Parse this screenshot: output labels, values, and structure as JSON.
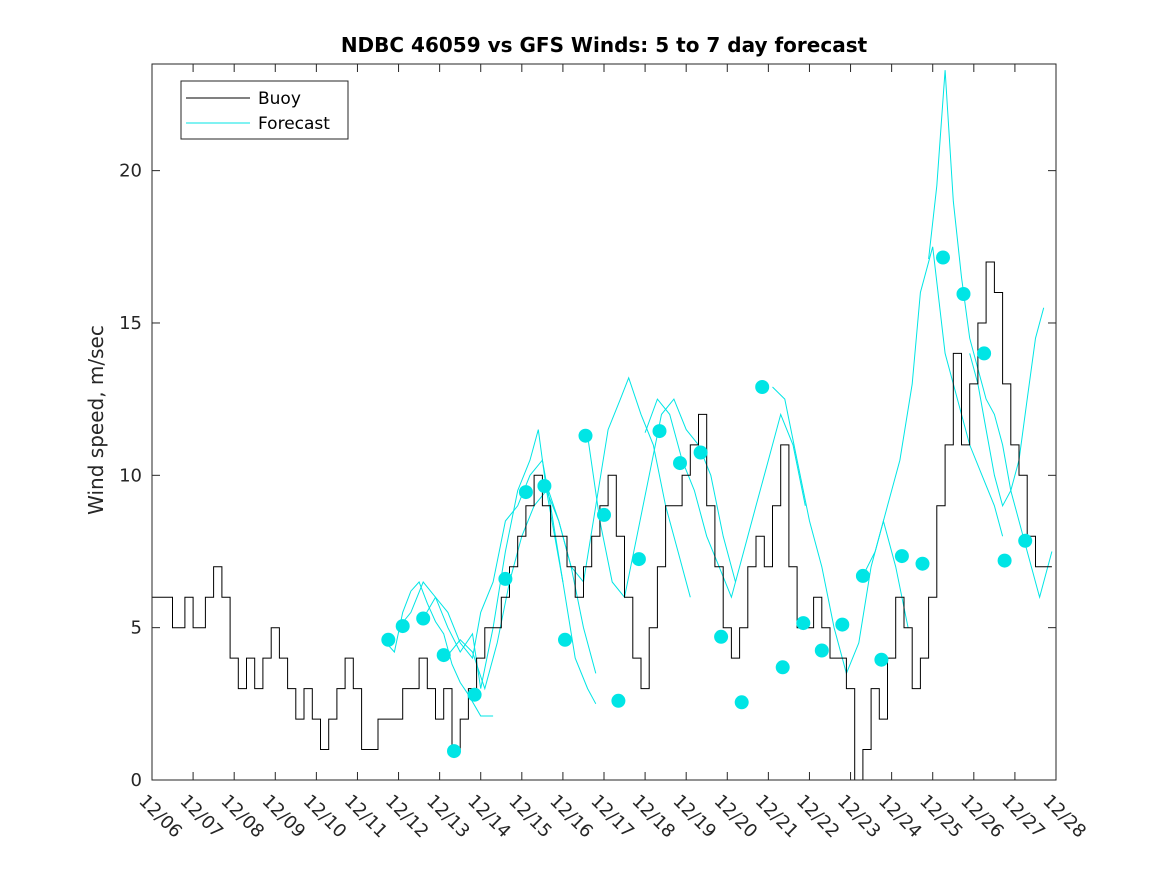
{
  "chart_data": {
    "type": "line",
    "title": "NDBC 46059 vs GFS Winds: 5 to 7 day forecast",
    "xlabel": "",
    "ylabel": "Wind speed, m/sec",
    "xlim": [
      0,
      22
    ],
    "ylim": [
      0,
      23.5
    ],
    "x_unit": "days from 12/06",
    "x_tick_values": [
      0,
      1,
      2,
      3,
      4,
      5,
      6,
      7,
      8,
      9,
      10,
      11,
      12,
      13,
      14,
      15,
      16,
      17,
      18,
      19,
      20,
      21,
      22
    ],
    "x_tick_labels": [
      "12/06",
      "12/07",
      "12/08",
      "12/09",
      "12/10",
      "12/11",
      "12/12",
      "12/13",
      "12/14",
      "12/15",
      "12/16",
      "12/17",
      "12/18",
      "12/19",
      "12/20",
      "12/21",
      "12/22",
      "12/23",
      "12/24",
      "12/25",
      "12/26",
      "12/27",
      "12/28"
    ],
    "y_ticks": [
      0,
      5,
      10,
      15,
      20
    ],
    "y_tick_labels": [
      "0",
      "5",
      "10",
      "15",
      "20"
    ],
    "grid": false,
    "legend": {
      "position": "top-left",
      "entries": [
        "Buoy",
        "Forecast"
      ]
    },
    "colors": {
      "buoy": "#000000",
      "forecast": "#00e5e5",
      "markers": "#00e5e5"
    },
    "buoy": [
      [
        0,
        6
      ],
      [
        0.3,
        6
      ],
      [
        0.5,
        5
      ],
      [
        0.8,
        6
      ],
      [
        1,
        5
      ],
      [
        1.3,
        6
      ],
      [
        1.5,
        7
      ],
      [
        1.7,
        6
      ],
      [
        1.9,
        4
      ],
      [
        2.1,
        3
      ],
      [
        2.3,
        4
      ],
      [
        2.5,
        3
      ],
      [
        2.7,
        4
      ],
      [
        2.9,
        5
      ],
      [
        3.1,
        4
      ],
      [
        3.3,
        3
      ],
      [
        3.5,
        2
      ],
      [
        3.7,
        3
      ],
      [
        3.9,
        2
      ],
      [
        4.1,
        1
      ],
      [
        4.3,
        2
      ],
      [
        4.5,
        3
      ],
      [
        4.7,
        4
      ],
      [
        4.9,
        3
      ],
      [
        5.1,
        1
      ],
      [
        5.3,
        1
      ],
      [
        5.5,
        2
      ],
      [
        5.7,
        2
      ],
      [
        5.9,
        2
      ],
      [
        6.1,
        3
      ],
      [
        6.3,
        3
      ],
      [
        6.5,
        4
      ],
      [
        6.7,
        3
      ],
      [
        6.9,
        2
      ],
      [
        7.1,
        3
      ],
      [
        7.3,
        1
      ],
      [
        7.5,
        2
      ],
      [
        7.7,
        3
      ],
      [
        7.9,
        4
      ],
      [
        8.1,
        5
      ],
      [
        8.3,
        5
      ],
      [
        8.5,
        6
      ],
      [
        8.7,
        7
      ],
      [
        8.9,
        8
      ],
      [
        9.1,
        9
      ],
      [
        9.3,
        10
      ],
      [
        9.5,
        9
      ],
      [
        9.7,
        8
      ],
      [
        9.9,
        8
      ],
      [
        10.1,
        7
      ],
      [
        10.3,
        6
      ],
      [
        10.5,
        7
      ],
      [
        10.7,
        8
      ],
      [
        10.9,
        9
      ],
      [
        11.1,
        10
      ],
      [
        11.3,
        8
      ],
      [
        11.5,
        6
      ],
      [
        11.7,
        4
      ],
      [
        11.9,
        3
      ],
      [
        12.1,
        5
      ],
      [
        12.3,
        7
      ],
      [
        12.5,
        9
      ],
      [
        12.7,
        9
      ],
      [
        12.9,
        10
      ],
      [
        13.1,
        11
      ],
      [
        13.3,
        12
      ],
      [
        13.5,
        9
      ],
      [
        13.7,
        7
      ],
      [
        13.9,
        5
      ],
      [
        14.1,
        4
      ],
      [
        14.3,
        5
      ],
      [
        14.5,
        7
      ],
      [
        14.7,
        8
      ],
      [
        14.9,
        7
      ],
      [
        15.1,
        9
      ],
      [
        15.3,
        11
      ],
      [
        15.5,
        7
      ],
      [
        15.7,
        5
      ],
      [
        15.9,
        5
      ],
      [
        16.1,
        6
      ],
      [
        16.3,
        5
      ],
      [
        16.5,
        4
      ],
      [
        16.7,
        4
      ],
      [
        16.9,
        3
      ],
      [
        17.1,
        0
      ],
      [
        17.3,
        1
      ],
      [
        17.5,
        3
      ],
      [
        17.7,
        2
      ],
      [
        17.9,
        4
      ],
      [
        18.1,
        6
      ],
      [
        18.3,
        5
      ],
      [
        18.5,
        3
      ],
      [
        18.7,
        4
      ],
      [
        18.9,
        6
      ],
      [
        19.1,
        9
      ],
      [
        19.3,
        11
      ],
      [
        19.5,
        14
      ],
      [
        19.7,
        11
      ],
      [
        19.9,
        13
      ],
      [
        20.1,
        15
      ],
      [
        20.3,
        17
      ],
      [
        20.5,
        16
      ],
      [
        20.7,
        13
      ],
      [
        20.9,
        11
      ],
      [
        21.1,
        10
      ],
      [
        21.3,
        8
      ],
      [
        21.5,
        7
      ],
      [
        21.7,
        7
      ],
      [
        21.9,
        7
      ]
    ],
    "forecast_runs": [
      [
        [
          5.7,
          4.5
        ],
        [
          5.9,
          4.2
        ],
        [
          6.1,
          5.5
        ],
        [
          6.3,
          6.2
        ],
        [
          6.5,
          6.5
        ],
        [
          6.7,
          5.8
        ],
        [
          6.9,
          5.2
        ],
        [
          7.1,
          4.8
        ],
        [
          7.3,
          3.8
        ],
        [
          7.5,
          3.2
        ],
        [
          7.7,
          2.8
        ],
        [
          8.0,
          2.1
        ],
        [
          8.3,
          2.1
        ]
      ],
      [
        [
          6.0,
          5.0
        ],
        [
          6.3,
          5.5
        ],
        [
          6.6,
          6.5
        ],
        [
          6.9,
          6.0
        ],
        [
          7.2,
          5.0
        ],
        [
          7.5,
          4.2
        ],
        [
          7.8,
          4.8
        ],
        [
          8.0,
          3.0
        ],
        [
          8.3,
          5.0
        ],
        [
          8.6,
          7.5
        ],
        [
          8.9,
          9.5
        ],
        [
          9.2,
          10.5
        ],
        [
          9.4,
          11.5
        ],
        [
          9.6,
          9.5
        ],
        [
          9.8,
          8.0
        ],
        [
          10.0,
          6.5
        ]
      ],
      [
        [
          6.6,
          5.3
        ],
        [
          6.9,
          6.0
        ],
        [
          7.2,
          5.5
        ],
        [
          7.5,
          4.5
        ],
        [
          7.8,
          4.0
        ],
        [
          8.0,
          5.5
        ],
        [
          8.3,
          6.5
        ],
        [
          8.6,
          8.5
        ],
        [
          8.9,
          9.0
        ],
        [
          9.2,
          10.0
        ],
        [
          9.5,
          10.5
        ],
        [
          9.7,
          9.0
        ],
        [
          10.0,
          6.5
        ],
        [
          10.3,
          4.0
        ],
        [
          10.6,
          3.0
        ],
        [
          10.8,
          2.5
        ]
      ],
      [
        [
          7.2,
          4.1
        ],
        [
          7.5,
          4.6
        ],
        [
          7.8,
          4.2
        ],
        [
          8.1,
          3.0
        ],
        [
          8.4,
          4.5
        ],
        [
          8.7,
          6.5
        ],
        [
          9.0,
          8.0
        ],
        [
          9.3,
          9.0
        ],
        [
          9.6,
          9.5
        ],
        [
          9.9,
          8.5
        ],
        [
          10.2,
          7.0
        ],
        [
          10.5,
          5.0
        ],
        [
          10.8,
          3.5
        ]
      ],
      [
        [
          9.6,
          9.7
        ],
        [
          9.9,
          8.5
        ],
        [
          10.2,
          7.0
        ],
        [
          10.5,
          6.5
        ],
        [
          10.8,
          9.0
        ],
        [
          11.1,
          11.5
        ],
        [
          11.4,
          12.5
        ],
        [
          11.6,
          13.2
        ],
        [
          11.9,
          12.0
        ],
        [
          12.2,
          11.0
        ],
        [
          12.5,
          9.0
        ],
        [
          12.8,
          7.5
        ],
        [
          13.1,
          6.0
        ]
      ],
      [
        [
          10.6,
          11.3
        ],
        [
          10.9,
          8.5
        ],
        [
          11.2,
          6.5
        ],
        [
          11.5,
          6.0
        ],
        [
          11.8,
          8.0
        ],
        [
          12.1,
          10.0
        ],
        [
          12.4,
          12.0
        ],
        [
          12.7,
          12.5
        ],
        [
          13.0,
          11.5
        ],
        [
          13.3,
          11.0
        ],
        [
          13.6,
          10.0
        ],
        [
          13.9,
          8.0
        ],
        [
          14.2,
          6.5
        ]
      ],
      [
        [
          12.0,
          11.4
        ],
        [
          12.3,
          12.5
        ],
        [
          12.6,
          12.0
        ],
        [
          12.9,
          10.5
        ],
        [
          13.2,
          9.5
        ],
        [
          13.5,
          8.0
        ],
        [
          13.8,
          7.0
        ],
        [
          14.1,
          6.0
        ],
        [
          14.4,
          7.5
        ],
        [
          14.7,
          9.0
        ],
        [
          15.0,
          10.5
        ],
        [
          15.3,
          12.0
        ],
        [
          15.6,
          11.0
        ],
        [
          15.9,
          9.0
        ]
      ],
      [
        [
          15.1,
          12.9
        ],
        [
          15.4,
          12.5
        ],
        [
          15.7,
          10.5
        ],
        [
          16.0,
          8.5
        ],
        [
          16.3,
          7.0
        ],
        [
          16.6,
          5.0
        ],
        [
          16.9,
          3.5
        ],
        [
          17.2,
          4.5
        ],
        [
          17.5,
          7.0
        ],
        [
          17.8,
          8.5
        ],
        [
          18.1,
          7.0
        ],
        [
          18.4,
          5.0
        ]
      ],
      [
        [
          17.3,
          6.7
        ],
        [
          17.6,
          7.5
        ],
        [
          17.9,
          9.0
        ],
        [
          18.2,
          10.5
        ],
        [
          18.5,
          13.0
        ],
        [
          18.7,
          16.0
        ],
        [
          19.0,
          17.5
        ],
        [
          19.3,
          14.0
        ],
        [
          19.6,
          12.5
        ],
        [
          19.9,
          11.0
        ],
        [
          20.2,
          10.0
        ],
        [
          20.5,
          9.0
        ],
        [
          20.7,
          8.0
        ]
      ],
      [
        [
          18.9,
          17.1
        ],
        [
          19.1,
          19.5
        ],
        [
          19.3,
          23.3
        ],
        [
          19.5,
          19.0
        ],
        [
          19.7,
          16.5
        ],
        [
          19.9,
          14.5
        ],
        [
          20.1,
          13.5
        ],
        [
          20.3,
          12.5
        ],
        [
          20.5,
          12.0
        ],
        [
          20.7,
          11.0
        ],
        [
          20.9,
          9.5
        ],
        [
          21.1,
          8.5
        ],
        [
          21.3,
          7.5
        ],
        [
          21.6,
          6.0
        ],
        [
          21.9,
          7.5
        ]
      ],
      [
        [
          19.9,
          14.0
        ],
        [
          20.1,
          13.0
        ],
        [
          20.3,
          11.5
        ],
        [
          20.5,
          10.0
        ],
        [
          20.7,
          9.0
        ],
        [
          20.9,
          9.5
        ],
        [
          21.1,
          10.5
        ],
        [
          21.3,
          12.5
        ],
        [
          21.5,
          14.5
        ],
        [
          21.7,
          15.5
        ]
      ]
    ],
    "markers": [
      [
        5.75,
        4.6
      ],
      [
        6.1,
        5.05
      ],
      [
        6.6,
        5.3
      ],
      [
        7.1,
        4.1
      ],
      [
        7.35,
        0.95
      ],
      [
        7.85,
        2.8
      ],
      [
        8.6,
        6.6
      ],
      [
        9.1,
        9.45
      ],
      [
        9.55,
        9.65
      ],
      [
        10.05,
        4.6
      ],
      [
        10.55,
        11.3
      ],
      [
        11.0,
        8.7
      ],
      [
        11.35,
        2.6
      ],
      [
        11.85,
        7.25
      ],
      [
        12.35,
        11.45
      ],
      [
        12.85,
        10.4
      ],
      [
        13.35,
        10.75
      ],
      [
        13.85,
        4.7
      ],
      [
        14.35,
        2.55
      ],
      [
        14.85,
        12.9
      ],
      [
        15.35,
        3.7
      ],
      [
        15.85,
        5.15
      ],
      [
        16.3,
        4.25
      ],
      [
        16.8,
        5.1
      ],
      [
        17.3,
        6.7
      ],
      [
        17.75,
        3.95
      ],
      [
        18.25,
        7.35
      ],
      [
        18.75,
        7.1
      ],
      [
        19.25,
        17.15
      ],
      [
        19.75,
        15.95
      ],
      [
        20.25,
        14.0
      ],
      [
        20.75,
        7.2
      ],
      [
        21.25,
        7.85
      ]
    ]
  }
}
